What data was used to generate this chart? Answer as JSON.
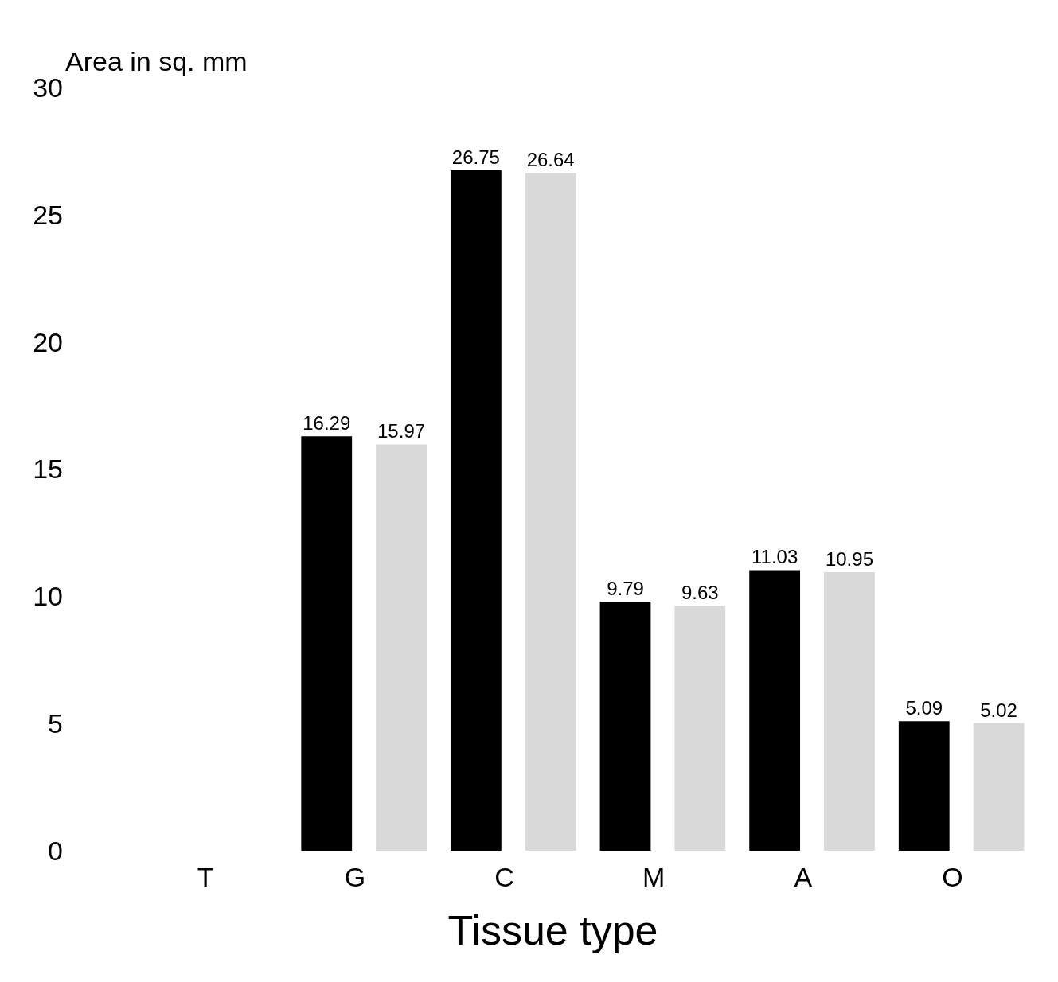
{
  "chart_data": {
    "type": "bar",
    "xlabel": "Tissue type",
    "ylabel": "Area in sq. mm",
    "categories": [
      "T",
      "G",
      "C",
      "M",
      "A",
      "O"
    ],
    "series": [
      {
        "color": "#000000",
        "values": [
          null,
          16.29,
          26.75,
          9.79,
          11.03,
          5.09
        ]
      },
      {
        "color": "#d9d9d9",
        "values": [
          null,
          15.97,
          26.64,
          9.63,
          10.95,
          5.02
        ]
      }
    ],
    "ylim": [
      0,
      30
    ],
    "yticks": [
      0,
      5,
      10,
      15,
      20,
      25,
      30
    ],
    "grid": false,
    "data_labels": true
  }
}
